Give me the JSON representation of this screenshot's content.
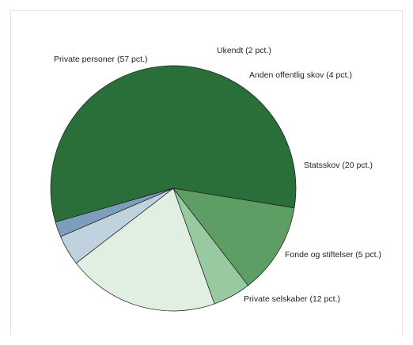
{
  "chart_data": {
    "type": "pie",
    "slices": [
      {
        "label": "Private personer (57 pct.)",
        "value": 57,
        "color": "#2a6e3a"
      },
      {
        "label": "Private selskaber (12 pct.)",
        "value": 12,
        "color": "#5e9e65"
      },
      {
        "label": "Fonde og stiftelser (5 pct.)",
        "value": 5,
        "color": "#98c9a0"
      },
      {
        "label": "Statsskov (20 pct.)",
        "value": 20,
        "color": "#e0efe1"
      },
      {
        "label": "Anden offentlig skov (4 pct.)",
        "value": 4,
        "color": "#bfd2de"
      },
      {
        "label": "Ukendt (2 pct.)",
        "value": 2,
        "color": "#7c9eba"
      }
    ],
    "legend": "none"
  }
}
